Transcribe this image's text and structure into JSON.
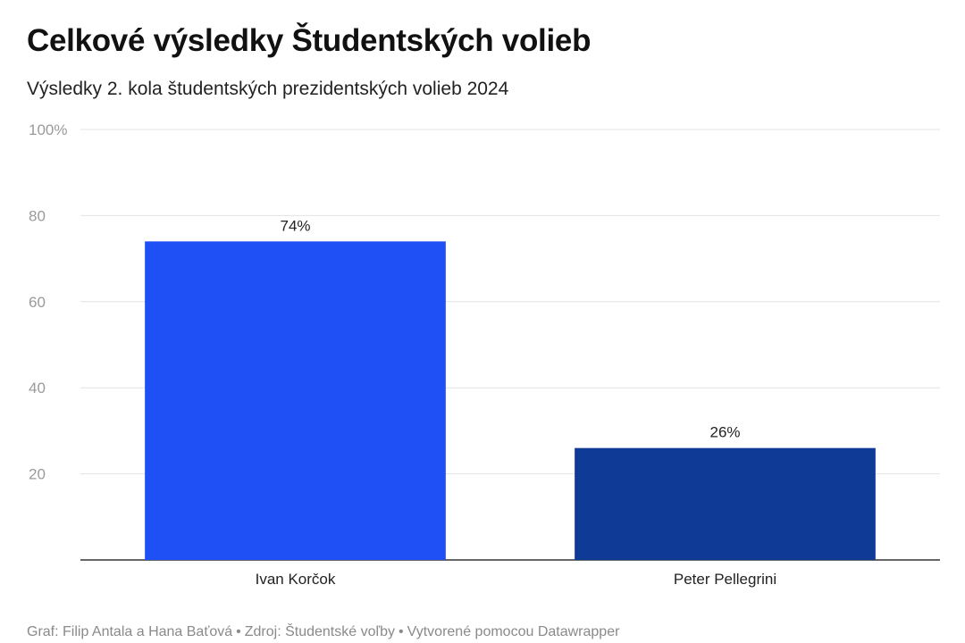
{
  "title": "Celkové výsledky Študentských volieb",
  "subtitle": "Výsledky 2. kola študentských prezidentských volieb 2024",
  "footer": {
    "author": "Graf: Filip Antala a Hana Baťová",
    "source": "Zdroj: Študentské voľby",
    "tool": "Vytvorené pomocou Datawrapper",
    "separator": "•"
  },
  "chart_data": {
    "type": "bar",
    "categories": [
      "Ivan Korčok",
      "Peter Pellegrini"
    ],
    "values": [
      74,
      26
    ],
    "value_labels": [
      "74%",
      "26%"
    ],
    "bar_colors": [
      "#1e50f5",
      "#0f3a96"
    ],
    "ylim": [
      0,
      100
    ],
    "yticks": [
      20,
      40,
      60,
      80,
      100
    ],
    "ytick_labels": [
      "20",
      "40",
      "60",
      "80",
      "100%"
    ],
    "grid": true,
    "xlabel": "",
    "ylabel": ""
  }
}
